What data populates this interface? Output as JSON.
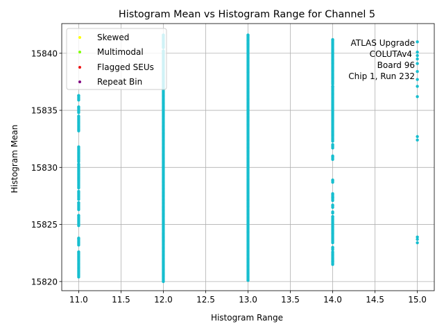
{
  "chart_data": {
    "type": "scatter",
    "title": "Histogram Mean vs Histogram Range for Channel 5",
    "xlabel": "Histogram Range",
    "ylabel": "Histogram Mean",
    "xlim": [
      10.8,
      15.2
    ],
    "ylim": [
      15819.2,
      15842.6
    ],
    "xticks": [
      "11.0",
      "11.5",
      "12.0",
      "12.5",
      "13.0",
      "13.5",
      "14.0",
      "14.5",
      "15.0"
    ],
    "yticks": [
      "15820",
      "15825",
      "15830",
      "15835",
      "15840"
    ],
    "grid": true,
    "legend_position": "top-left",
    "legend": [
      {
        "name": "Skewed",
        "color": "#ffff00"
      },
      {
        "name": "Multimodal",
        "color": "#7fff00"
      },
      {
        "name": "Flagged SEUs",
        "color": "#ee1111"
      },
      {
        "name": "Repeat Bin",
        "color": "#800080"
      }
    ],
    "annotation": [
      "ATLAS Upgrade",
      "COLUTAv4",
      "Board 96",
      "Chip 1, Run 232"
    ],
    "point_color": "#17becf",
    "series": [
      {
        "x": 11,
        "ranges": [
          [
            15820.4,
            15822.6
          ],
          [
            15823.2,
            15823.8
          ],
          [
            15824.9,
            15825.8
          ],
          [
            15826.3,
            15826.9
          ],
          [
            15827.2,
            15827.9
          ],
          [
            15828.2,
            15830.3
          ],
          [
            15830.5,
            15831.8
          ],
          [
            15833.2,
            15834.5
          ],
          [
            15834.8,
            15835.3
          ],
          [
            15835.9,
            15836.3
          ]
        ]
      },
      {
        "x": 12,
        "ranges": [
          [
            15820.0,
            15840.2
          ],
          [
            15840.5,
            15841.6
          ]
        ]
      },
      {
        "x": 13,
        "ranges": [
          [
            15820.1,
            15841.6
          ]
        ]
      },
      {
        "x": 14,
        "ranges": [
          [
            15821.5,
            15821.8
          ],
          [
            15821.9,
            15822.6
          ],
          [
            15822.8,
            15823.0
          ],
          [
            15823.4,
            15825.7
          ],
          [
            15826.0,
            15826.1
          ],
          [
            15826.5,
            15826.7
          ],
          [
            15827.1,
            15827.4
          ],
          [
            15827.5,
            15827.7
          ],
          [
            15828.7,
            15828.9
          ],
          [
            15830.7,
            15831.0
          ],
          [
            15831.7,
            15832.0
          ],
          [
            15832.3,
            15837.1
          ],
          [
            15837.3,
            15841.2
          ]
        ]
      },
      {
        "x": 15,
        "values": [
          15823.4,
          15823.7,
          15823.9,
          15832.4,
          15832.7,
          15836.2,
          15837.1,
          15837.7,
          15838.4,
          15839.1,
          15839.5,
          15839.8,
          15840.1,
          15841.0
        ]
      }
    ]
  }
}
